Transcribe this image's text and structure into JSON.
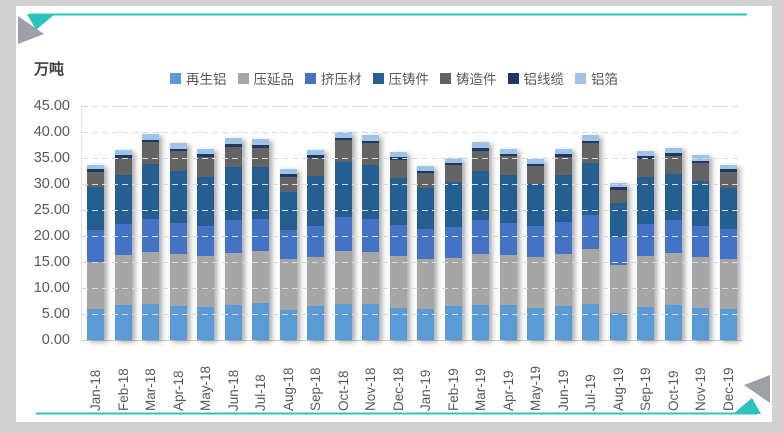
{
  "page": {
    "background": "#d2d2d2",
    "card_background": "#ffffff",
    "accent_teal": "#2bc4bd",
    "accent_gray": "#9ea0a8"
  },
  "chart": {
    "unit_label": "万吨"
  },
  "chart_data": {
    "type": "bar",
    "stacked": true,
    "title": "",
    "ylabel_unit": "万吨",
    "ylim": [
      0,
      45
    ],
    "ytick_step": 5,
    "ytick_labels": [
      "45.00",
      "40.00",
      "35.00",
      "30.00",
      "25.00",
      "20.00",
      "15.00",
      "10.00",
      "5.00",
      "0.00"
    ],
    "grid": "dashed-horizontal",
    "legend_position": "top",
    "categories": [
      "Jan-18",
      "Feb-18",
      "Mar-18",
      "Apr-18",
      "May-18",
      "Jun-18",
      "Jul-18",
      "Aug-18",
      "Sep-18",
      "Oct-18",
      "Nov-18",
      "Dec-18",
      "Jan-19",
      "Feb-19",
      "Mar-19",
      "Apr-19",
      "May-19",
      "Jun-19",
      "Jul-19",
      "Aug-19",
      "Sep-19",
      "Oct-19",
      "Nov-19",
      "Dec-19"
    ],
    "series": [
      {
        "name": "再生铝",
        "color": "#5B9BD5",
        "values": [
          6.0,
          6.8,
          7.0,
          6.5,
          6.3,
          6.8,
          7.2,
          5.8,
          6.5,
          7.0,
          7.0,
          6.2,
          6.0,
          6.5,
          6.8,
          6.8,
          6.2,
          6.5,
          7.0,
          5.2,
          6.3,
          6.8,
          6.2,
          6.0
        ]
      },
      {
        "name": "压延品",
        "color": "#A6A6A6",
        "values": [
          9.0,
          9.5,
          10.0,
          10.0,
          9.8,
          10.0,
          10.0,
          9.8,
          9.5,
          10.2,
          10.0,
          10.0,
          9.5,
          9.3,
          9.8,
          9.5,
          9.8,
          10.0,
          10.5,
          9.3,
          9.8,
          10.0,
          9.8,
          9.5
        ]
      },
      {
        "name": "挤压材",
        "color": "#4472C4",
        "values": [
          6.1,
          6.0,
          6.3,
          6.0,
          5.8,
          6.2,
          6.0,
          5.6,
          6.0,
          6.5,
          6.3,
          6.0,
          5.8,
          5.9,
          6.5,
          6.2,
          6.0,
          6.2,
          6.5,
          5.4,
          6.2,
          6.3,
          6.0,
          5.8
        ]
      },
      {
        "name": "压铸件",
        "color": "#255E91",
        "values": [
          8.3,
          9.5,
          10.5,
          10.0,
          9.5,
          10.2,
          10.0,
          7.2,
          9.5,
          10.5,
          10.3,
          9.0,
          8.0,
          8.6,
          9.5,
          9.2,
          8.0,
          9.0,
          10.0,
          6.5,
          9.0,
          8.8,
          8.5,
          8.0
        ]
      },
      {
        "name": "铸造件",
        "color": "#636363",
        "values": [
          2.9,
          3.2,
          4.2,
          3.8,
          3.8,
          4.0,
          3.8,
          3.0,
          3.6,
          4.2,
          4.2,
          3.5,
          2.8,
          3.3,
          3.8,
          3.6,
          3.4,
          3.5,
          3.8,
          2.5,
          3.5,
          3.5,
          3.5,
          3.0
        ]
      },
      {
        "name": "铝线缆",
        "color": "#1F3864",
        "values": [
          0.5,
          0.5,
          0.5,
          0.5,
          0.5,
          0.5,
          0.5,
          0.5,
          0.5,
          0.5,
          0.5,
          0.5,
          0.5,
          0.5,
          0.5,
          0.5,
          0.5,
          0.5,
          0.5,
          0.5,
          0.5,
          0.5,
          0.5,
          0.5
        ]
      },
      {
        "name": "铝箔",
        "color": "#9DC3E6",
        "values": [
          0.9,
          1.0,
          1.1,
          1.1,
          1.0,
          1.1,
          1.1,
          0.9,
          1.0,
          1.2,
          1.2,
          1.0,
          0.9,
          1.0,
          1.1,
          1.0,
          1.0,
          1.0,
          1.1,
          0.8,
          1.0,
          1.0,
          1.0,
          0.9
        ]
      }
    ]
  }
}
